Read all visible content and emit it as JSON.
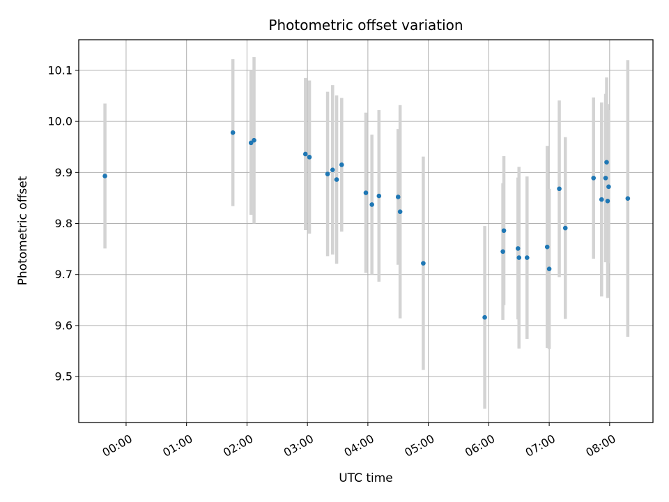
{
  "chart_data": {
    "type": "scatter",
    "title": "Photometric offset variation",
    "xlabel": "UTC time",
    "ylabel": "Photometric offset",
    "xlim": [
      "23:13",
      "08:43"
    ],
    "ylim": [
      9.41,
      10.16
    ],
    "grid": true,
    "x_ticks": [
      "00:00",
      "01:00",
      "02:00",
      "03:00",
      "04:00",
      "05:00",
      "06:00",
      "07:00",
      "08:00"
    ],
    "y_ticks": [
      9.5,
      9.6,
      9.7,
      9.8,
      9.9,
      10.0,
      10.1
    ],
    "y_tick_labels": [
      "9.5",
      "9.6",
      "9.7",
      "9.8",
      "9.9",
      "10.0",
      "10.1"
    ],
    "point_color": "#1f77b4",
    "errorbar_color": "#d3d3d3",
    "points": [
      {
        "x": "23:39",
        "y": 9.893,
        "err": 0.142
      },
      {
        "x": "01:46",
        "y": 9.978,
        "err": 0.144
      },
      {
        "x": "02:04",
        "y": 9.958,
        "err": 0.141
      },
      {
        "x": "02:07",
        "y": 9.963,
        "err": 0.163
      },
      {
        "x": "02:58",
        "y": 9.936,
        "err": 0.149
      },
      {
        "x": "03:02",
        "y": 9.93,
        "err": 0.15
      },
      {
        "x": "03:20",
        "y": 9.897,
        "err": 0.161
      },
      {
        "x": "03:25",
        "y": 9.905,
        "err": 0.166
      },
      {
        "x": "03:29",
        "y": 9.886,
        "err": 0.165
      },
      {
        "x": "03:34",
        "y": 9.915,
        "err": 0.131
      },
      {
        "x": "03:58",
        "y": 9.86,
        "err": 0.157
      },
      {
        "x": "04:04",
        "y": 9.837,
        "err": 0.137
      },
      {
        "x": "04:11",
        "y": 9.854,
        "err": 0.168
      },
      {
        "x": "04:30",
        "y": 9.852,
        "err": 0.133
      },
      {
        "x": "04:32",
        "y": 9.823,
        "err": 0.209
      },
      {
        "x": "04:55",
        "y": 9.722,
        "err": 0.209
      },
      {
        "x": "05:56",
        "y": 9.616,
        "err": 0.179
      },
      {
        "x": "06:14",
        "y": 9.745,
        "err": 0.134
      },
      {
        "x": "06:15",
        "y": 9.786,
        "err": 0.146
      },
      {
        "x": "06:29",
        "y": 9.751,
        "err": 0.139
      },
      {
        "x": "06:30",
        "y": 9.733,
        "err": 0.178
      },
      {
        "x": "06:38",
        "y": 9.733,
        "err": 0.159
      },
      {
        "x": "06:58",
        "y": 9.754,
        "err": 0.198
      },
      {
        "x": "07:00",
        "y": 9.711,
        "err": 0.157
      },
      {
        "x": "07:10",
        "y": 9.868,
        "err": 0.173
      },
      {
        "x": "07:16",
        "y": 9.791,
        "err": 0.178
      },
      {
        "x": "07:44",
        "y": 9.889,
        "err": 0.158
      },
      {
        "x": "07:52",
        "y": 9.847,
        "err": 0.19
      },
      {
        "x": "07:56",
        "y": 9.889,
        "err": 0.165
      },
      {
        "x": "07:57",
        "y": 9.92,
        "err": 0.166
      },
      {
        "x": "07:58",
        "y": 9.844,
        "err": 0.19
      },
      {
        "x": "07:59",
        "y": 9.872,
        "err": 0.15
      },
      {
        "x": "08:18",
        "y": 9.849,
        "err": 0.271
      }
    ]
  }
}
